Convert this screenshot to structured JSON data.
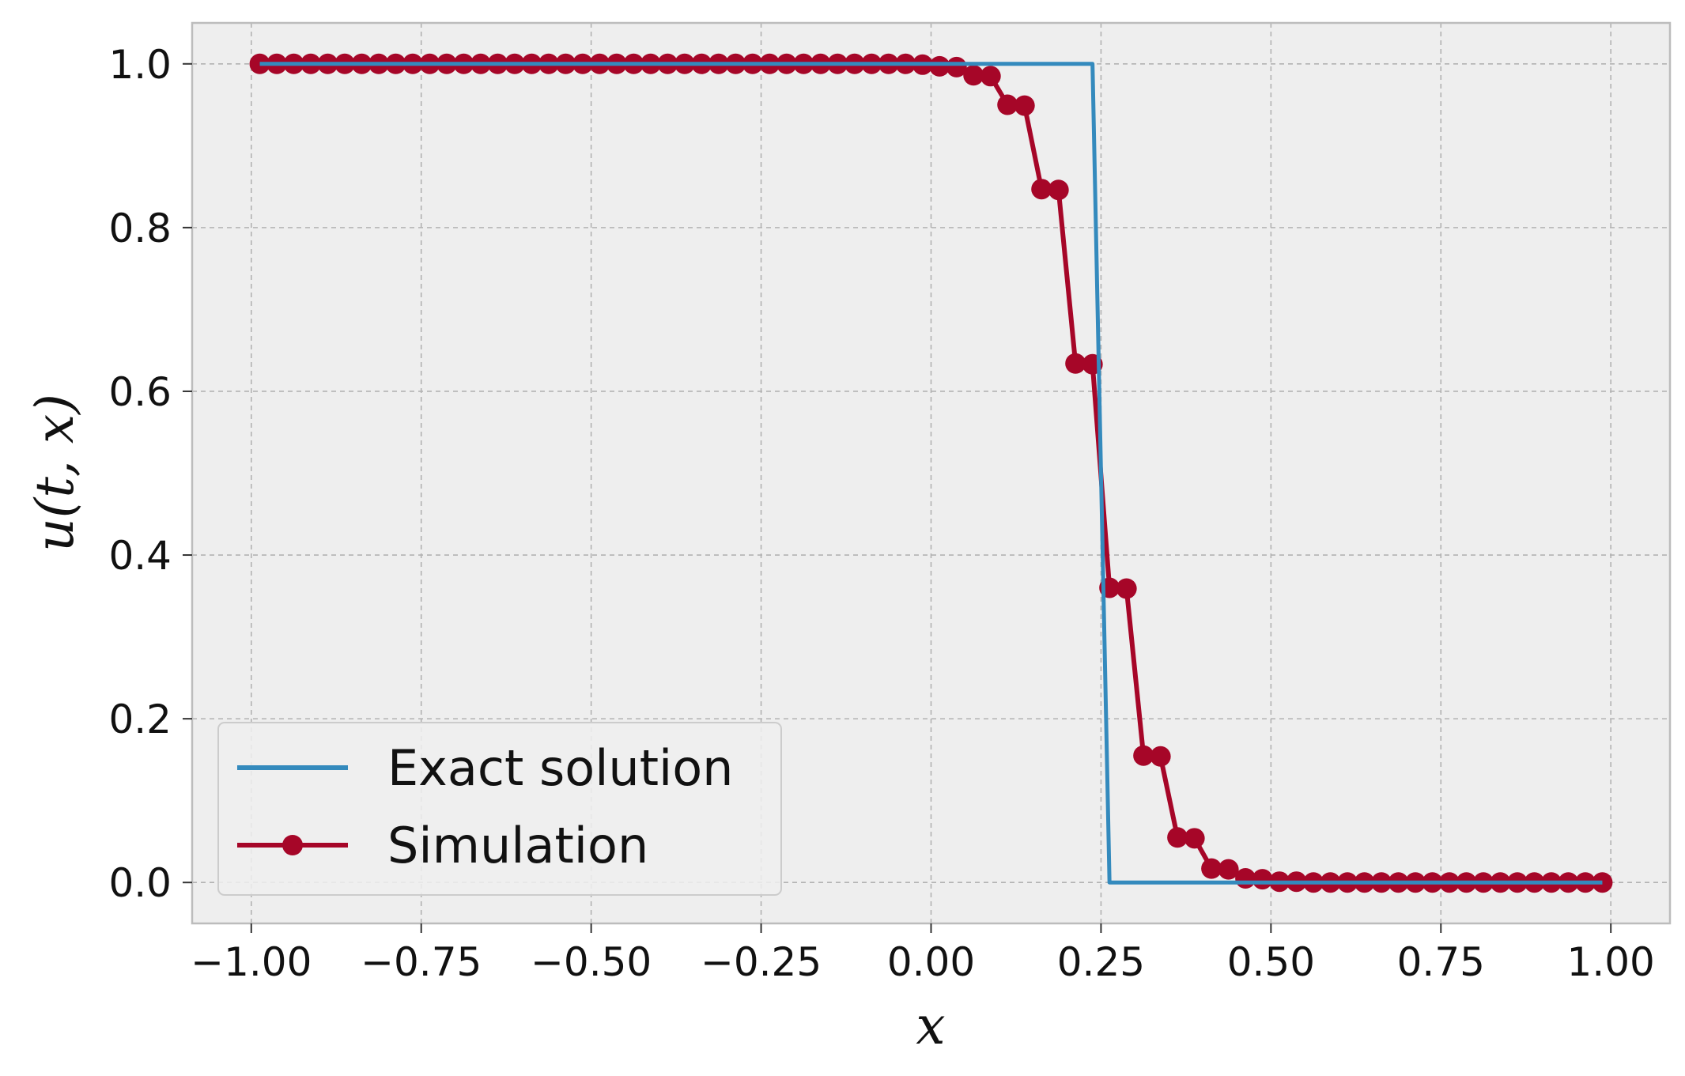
{
  "chart_data": {
    "type": "line",
    "xlabel": "x",
    "ylabel": "u(t, x)",
    "xlim": [
      -1.087,
      1.087
    ],
    "ylim": [
      -0.05,
      1.05
    ],
    "xticks": [
      -1.0,
      -0.75,
      -0.5,
      -0.25,
      0.0,
      0.25,
      0.5,
      0.75,
      1.0
    ],
    "xtick_labels": [
      "−1.00",
      "−0.75",
      "−0.50",
      "−0.25",
      "0.00",
      "0.25",
      "0.50",
      "0.75",
      "1.00"
    ],
    "yticks": [
      0.0,
      0.2,
      0.4,
      0.6,
      0.8,
      1.0
    ],
    "ytick_labels": [
      "0.0",
      "0.2",
      "0.4",
      "0.6",
      "0.8",
      "1.0"
    ],
    "grid": true,
    "legend_position": "lower-left",
    "series": [
      {
        "name": "Exact solution",
        "color": "#348abd",
        "marker": "none",
        "x": [
          -0.9875,
          0.2375,
          0.2625,
          0.9875
        ],
        "y": [
          1.0,
          1.0,
          0.0,
          0.0
        ]
      },
      {
        "name": "Simulation",
        "color": "#a60628",
        "marker": "circle",
        "x": [
          -0.9875,
          -0.9625,
          -0.9375,
          -0.9125,
          -0.8875,
          -0.8625,
          -0.8375,
          -0.8125,
          -0.7875,
          -0.7625,
          -0.7375,
          -0.7125,
          -0.6875,
          -0.6625,
          -0.6375,
          -0.6125,
          -0.5875,
          -0.5625,
          -0.5375,
          -0.5125,
          -0.4875,
          -0.4625,
          -0.4375,
          -0.4125,
          -0.3875,
          -0.3625,
          -0.3375,
          -0.3125,
          -0.2875,
          -0.2625,
          -0.2375,
          -0.2125,
          -0.1875,
          -0.1625,
          -0.1375,
          -0.1125,
          -0.0875,
          -0.0625,
          -0.0375,
          -0.0125,
          0.0125,
          0.0375,
          0.0625,
          0.0875,
          0.1125,
          0.1375,
          0.1625,
          0.1875,
          0.2125,
          0.2375,
          0.2625,
          0.2875,
          0.3125,
          0.3375,
          0.3625,
          0.3875,
          0.4125,
          0.4375,
          0.4625,
          0.4875,
          0.5125,
          0.5375,
          0.5625,
          0.5875,
          0.6125,
          0.6375,
          0.6625,
          0.6875,
          0.7125,
          0.7375,
          0.7625,
          0.7875,
          0.8125,
          0.8375,
          0.8625,
          0.8875,
          0.9125,
          0.9375,
          0.9625,
          0.9875
        ],
        "y": [
          1.0,
          1.0,
          1.0,
          1.0,
          1.0,
          1.0,
          1.0,
          1.0,
          1.0,
          1.0,
          1.0,
          1.0,
          1.0,
          1.0,
          1.0,
          1.0,
          1.0,
          1.0,
          1.0,
          1.0,
          1.0,
          1.0,
          1.0,
          1.0,
          1.0,
          1.0,
          1.0,
          1.0,
          1.0,
          1.0,
          1.0,
          1.0,
          1.0,
          1.0,
          1.0,
          1.0,
          1.0,
          1.0,
          1.0,
          0.999,
          0.997,
          0.996,
          0.986,
          0.985,
          0.95,
          0.949,
          0.847,
          0.846,
          0.634,
          0.633,
          0.36,
          0.359,
          0.155,
          0.154,
          0.055,
          0.054,
          0.017,
          0.016,
          0.005,
          0.004,
          0.001,
          0.001,
          0.0,
          0.0,
          0.0,
          0.0,
          0.0,
          0.0,
          0.0,
          0.0,
          0.0,
          0.0,
          0.0,
          0.0,
          0.0,
          0.0,
          0.0,
          0.0,
          0.0,
          0.0
        ]
      }
    ]
  }
}
